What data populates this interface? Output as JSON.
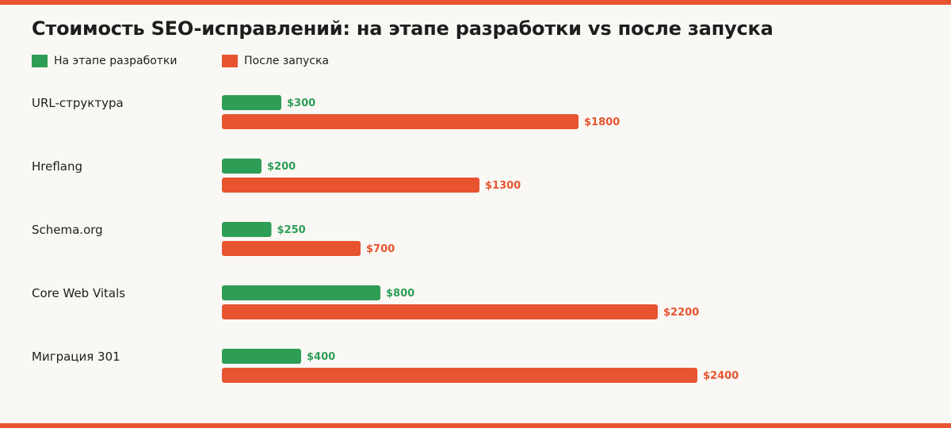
{
  "chart_data": {
    "type": "bar",
    "orientation": "horizontal",
    "title": "Стоимость SEO-исправлений: на этапе разработки vs после запуска",
    "categories": [
      "URL-структура",
      "Hreflang",
      "Schema.org",
      "Core Web Vitals",
      "Миграция 301"
    ],
    "series": [
      {
        "name": "На этапе разработки",
        "color": "#2e9e57",
        "values": [
          300,
          200,
          250,
          800,
          400
        ],
        "labels": [
          "$300",
          "$200",
          "$250",
          "$800",
          "$400"
        ]
      },
      {
        "name": "После запуска",
        "color": "#e85430",
        "values": [
          1800,
          1300,
          700,
          2200,
          2400
        ],
        "labels": [
          "$1800",
          "$1300",
          "$700",
          "$2200",
          "$2400"
        ]
      }
    ],
    "xlim": [
      0,
      2400
    ],
    "grid": false,
    "legend_position": "top-left"
  },
  "colors": {
    "background": "#faf8f4",
    "accent_stripe": "#e85430",
    "text": "#1e1e1e"
  }
}
